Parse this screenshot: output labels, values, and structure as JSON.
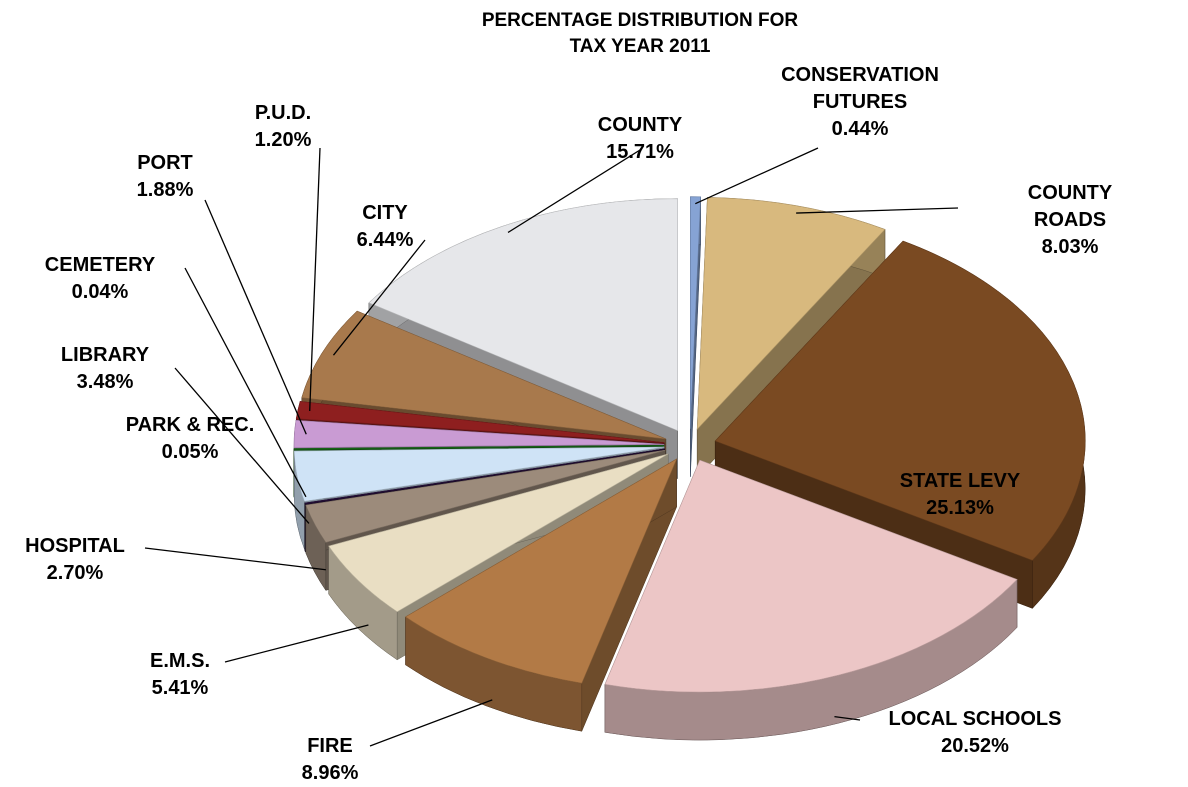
{
  "chart_data": {
    "type": "pie",
    "title": [
      "PERCENTAGE DISTRIBUTION FOR",
      "TAX YEAR 2011"
    ],
    "categories": [
      "CONSERVATION FUTURES",
      "COUNTY ROADS",
      "STATE LEVY",
      "LOCAL SCHOOLS",
      "FIRE",
      "E.M.S.",
      "HOSPITAL",
      "PARK & REC.",
      "LIBRARY",
      "CEMETERY",
      "PORT",
      "P.U.D.",
      "CITY",
      "COUNTY"
    ],
    "values": [
      0.44,
      8.03,
      25.13,
      20.52,
      8.96,
      5.41,
      2.7,
      0.05,
      3.48,
      0.04,
      1.88,
      1.2,
      6.44,
      15.71
    ],
    "value_labels": [
      "0.44%",
      "8.03%",
      "25.13%",
      "20.52%",
      "8.96%",
      "5.41%",
      "2.70%",
      "0.05%",
      "3.48%",
      "0.04%",
      "1.88%",
      "1.20%",
      "6.44%",
      "15.71%"
    ],
    "colors": [
      "#86a3d4",
      "#d8b97e",
      "#7a4a22",
      "#ecc6c6",
      "#b27a46",
      "#e9dec3",
      "#9c8b7b",
      "#2b1240",
      "#cfe3f6",
      "#1b7d1b",
      "#c99bd3",
      "#8e1f1f",
      "#a8794c",
      "#e6e7ea"
    ]
  }
}
